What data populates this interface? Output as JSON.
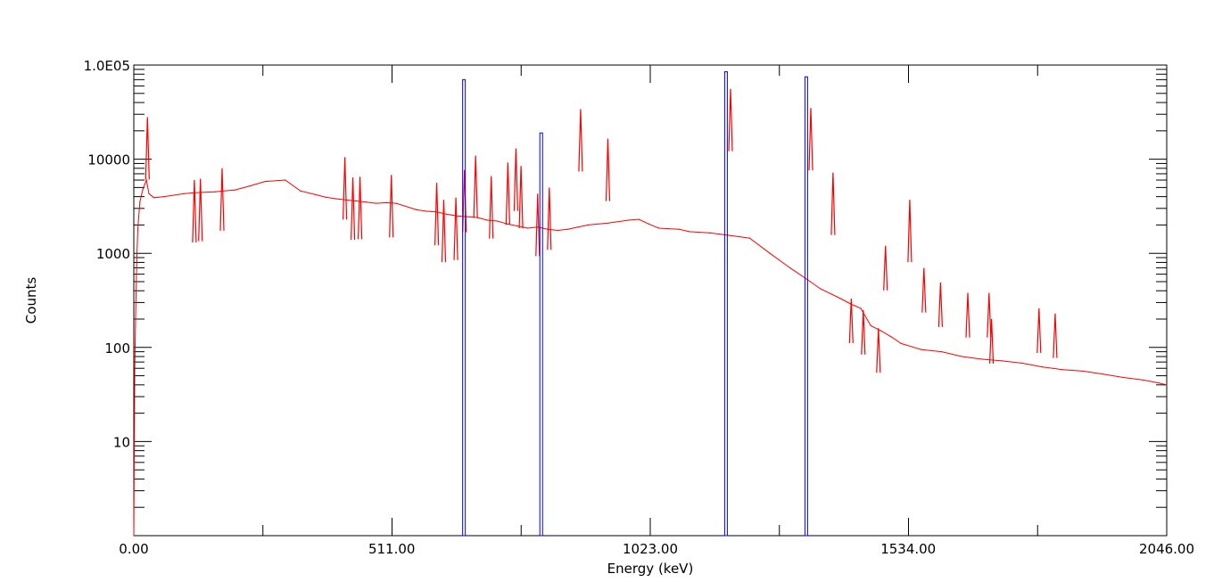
{
  "chart_data": {
    "type": "line",
    "xlabel": "Energy (keV)",
    "ylabel": "Counts",
    "xlim": [
      0,
      2046
    ],
    "ylim": [
      1,
      100000
    ],
    "y_scale": "log",
    "grid": false,
    "x_ticks": [
      0,
      511,
      1023,
      1534,
      2046
    ],
    "x_tick_labels": [
      "0.00",
      "511.00",
      "1023.00",
      "1534.00",
      "2046.00"
    ],
    "y_ticks": [
      10,
      100,
      1000,
      10000,
      100000
    ],
    "y_tick_labels": [
      "10",
      "100",
      "1000",
      "10000",
      "1.0E05"
    ],
    "colors": {
      "spectrum": "#ff0000",
      "markers": "#0000ff"
    },
    "series": [
      {
        "style": "line",
        "color": "#ff0000",
        "x": [
          0,
          2,
          4,
          6,
          8,
          12,
          18,
          25,
          30,
          40,
          60,
          100,
          120,
          160,
          200,
          230,
          260,
          300,
          330,
          360,
          380,
          400,
          440,
          460,
          480,
          500,
          520,
          560,
          580,
          600,
          620,
          640,
          660,
          680,
          700,
          720,
          740,
          760,
          780,
          800,
          820,
          840,
          860,
          880,
          900,
          940,
          980,
          1000,
          1020,
          1040,
          1080,
          1100,
          1140,
          1160,
          1180,
          1200,
          1220,
          1260,
          1300,
          1340,
          1360,
          1400,
          1420,
          1440,
          1460,
          1480,
          1500,
          1520,
          1560,
          1600,
          1640,
          1680,
          1720,
          1760,
          1800,
          1840,
          1880,
          1920,
          1960,
          2000,
          2030,
          2046
        ],
        "y": [
          1,
          60,
          300,
          900,
          1800,
          3500,
          4800,
          6000,
          4300,
          3900,
          4000,
          4300,
          4400,
          4500,
          4700,
          5200,
          5800,
          6000,
          4600,
          4200,
          3950,
          3800,
          3600,
          3500,
          3400,
          3450,
          3400,
          2900,
          2800,
          2750,
          2600,
          2500,
          2450,
          2400,
          2250,
          2200,
          2050,
          1950,
          1850,
          1900,
          1800,
          1750,
          1800,
          1900,
          2000,
          2100,
          2250,
          2300,
          2050,
          1850,
          1800,
          1700,
          1650,
          1600,
          1550,
          1500,
          1450,
          1000,
          700,
          500,
          420,
          330,
          290,
          260,
          170,
          150,
          130,
          110,
          95,
          90,
          80,
          75,
          72,
          68,
          62,
          58,
          56,
          52,
          48,
          45,
          42,
          40
        ]
      },
      {
        "style": "peaks",
        "color": "#ff0000",
        "x": [
          27,
          120,
          132,
          175,
          418,
          434,
          448,
          510,
          600,
          614,
          638,
          655,
          677,
          708,
          741,
          757,
          767,
          800,
          823,
          885,
          939,
          1182,
          1341,
          1385,
          1421,
          1445,
          1475,
          1489,
          1537,
          1565,
          1598,
          1652,
          1699,
          1694,
          1793,
          1825
        ],
        "y": [
          28000,
          6000,
          6200,
          8000,
          10500,
          6400,
          6500,
          6800,
          5600,
          3700,
          3900,
          7700,
          10900,
          6600,
          9200,
          13000,
          8500,
          4300,
          5000,
          34000,
          16500,
          56000,
          35000,
          7200,
          330,
          250,
          160,
          1200,
          3700,
          700,
          490,
          380,
          200,
          380,
          260,
          230
        ]
      },
      {
        "style": "bars",
        "color": "#0000ff",
        "x": [
          654,
          807,
          1173,
          1332
        ],
        "y": [
          70000,
          19000,
          85000,
          75000
        ]
      }
    ]
  }
}
